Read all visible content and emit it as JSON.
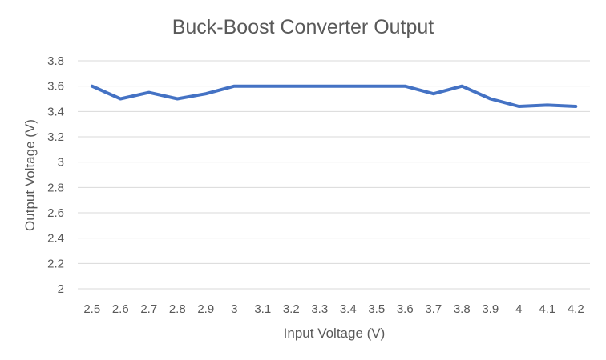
{
  "chart_data": {
    "type": "line",
    "title": "Buck-Boost Converter Output",
    "xlabel": "Input Voltage (V)",
    "ylabel": "Output Voltage (V)",
    "categories": [
      "2.5",
      "2.6",
      "2.7",
      "2.8",
      "2.9",
      "3",
      "3.1",
      "3.2",
      "3.3",
      "3.4",
      "3.5",
      "3.6",
      "3.7",
      "3.8",
      "3.9",
      "4",
      "4.1",
      "4.2"
    ],
    "y_ticks": [
      "2",
      "2.2",
      "2.4",
      "2.6",
      "2.8",
      "3",
      "3.2",
      "3.4",
      "3.6",
      "3.8"
    ],
    "ylim": [
      2,
      3.8
    ],
    "grid": true,
    "legend": "none",
    "series": [
      {
        "color": "#4472c4",
        "values": [
          3.6,
          3.5,
          3.55,
          3.5,
          3.54,
          3.6,
          3.6,
          3.6,
          3.6,
          3.6,
          3.6,
          3.6,
          3.54,
          3.6,
          3.5,
          3.44,
          3.45,
          3.44
        ]
      }
    ]
  }
}
